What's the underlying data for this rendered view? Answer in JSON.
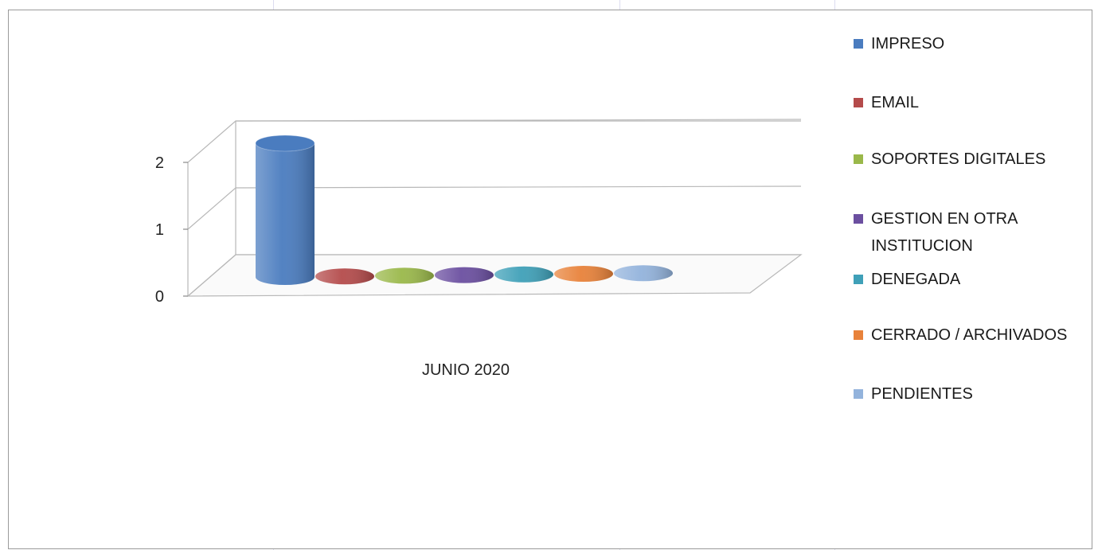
{
  "chart_data": {
    "type": "bar",
    "style": "3d-cylinder",
    "categories": [
      "JUNIO 2020"
    ],
    "series": [
      {
        "name": "IMPRESO",
        "values": [
          2
        ],
        "color": "#4a7cbf"
      },
      {
        "name": "EMAIL",
        "values": [
          0
        ],
        "color": "#b44b4b"
      },
      {
        "name": "SOPORTES DIGITALES",
        "values": [
          0
        ],
        "color": "#9ab84a"
      },
      {
        "name": "GESTION EN OTRA INSTITUCION",
        "values": [
          0
        ],
        "color": "#6b4fa0"
      },
      {
        "name": "DENEGADA",
        "values": [
          0
        ],
        "color": "#3fa0b8"
      },
      {
        "name": "CERRADO / ARCHIVADOS",
        "values": [
          0
        ],
        "color": "#e8823a"
      },
      {
        "name": "PENDIENTES",
        "values": [
          0
        ],
        "color": "#93b3dc"
      }
    ],
    "yticks": [
      "0",
      "1",
      "2"
    ],
    "ylim": [
      0,
      2
    ],
    "grid": true,
    "legend_position": "right"
  }
}
